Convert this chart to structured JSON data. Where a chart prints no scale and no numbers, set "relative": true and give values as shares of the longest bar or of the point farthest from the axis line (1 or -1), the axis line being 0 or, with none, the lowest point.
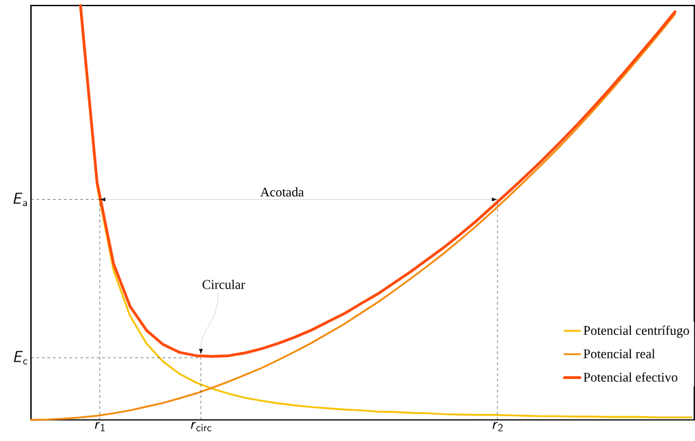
{
  "chart_data": {
    "type": "line",
    "relative": true,
    "legend": "bottom right",
    "categories": [
      null,
      null,
      null,
      null,
      null,
      null,
      null,
      null,
      null,
      null,
      null,
      null,
      null,
      null,
      null,
      null,
      null,
      null,
      null,
      null,
      null,
      null,
      null,
      null,
      null,
      null,
      null,
      null,
      null,
      null,
      null,
      null,
      null,
      null,
      null,
      null,
      null,
      null,
      null,
      null,
      null
    ],
    "series": [
      {
        "name": "Potencial centrífugo",
        "color": "#f7c100",
        "values": [
          null,
          null,
          null,
          0.99,
          0.564,
          0.361,
          0.251,
          0.184,
          0.141,
          0.111,
          0.09,
          0.075,
          0.063,
          0.053,
          0.046,
          0.04,
          0.035,
          0.031,
          0.028,
          0.025,
          0.023,
          0.02,
          0.019,
          0.017,
          0.016,
          0.014,
          0.013,
          0.012,
          0.012,
          0.011,
          0.01,
          0.009,
          0.009,
          0.008,
          0.008,
          0.007,
          0.007,
          0.007,
          0.006,
          0.006,
          0.006
        ]
      },
      {
        "name": "Potencial real",
        "color": "#f28a0c",
        "values": [
          0,
          0.001,
          0.003,
          0.006,
          0.01,
          0.016,
          0.023,
          0.032,
          0.041,
          0.052,
          0.064,
          0.078,
          0.093,
          0.109,
          0.126,
          0.145,
          0.165,
          0.186,
          0.209,
          0.232,
          0.258,
          0.284,
          0.312,
          0.341,
          0.371,
          0.402,
          0.435,
          0.469,
          0.505,
          0.542,
          0.58,
          0.619,
          0.659,
          0.701,
          0.744,
          0.789,
          0.835,
          0.882,
          0.93,
          0.979,
          null
        ]
      },
      {
        "name": "Potencial efectivo",
        "color": "#ff4a0a",
        "values": [
          null,
          null,
          null,
          1.0,
          0.574,
          0.377,
          0.274,
          0.216,
          0.182,
          0.163,
          0.155,
          0.153,
          0.155,
          0.162,
          0.172,
          0.185,
          0.2,
          0.217,
          0.237,
          0.257,
          0.281,
          0.304,
          0.331,
          0.358,
          0.387,
          0.416,
          0.448,
          0.481,
          0.517,
          0.553,
          0.59,
          0.628,
          0.668,
          0.709,
          0.752,
          0.796,
          0.842,
          0.889,
          0.936,
          0.985,
          null
        ]
      }
    ],
    "annotations": [
      "*E*$_{a}$",
      "Acotada",
      "Circular",
      "*E*$_{c}$",
      "*r*$_{1}$",
      "*r*$_{circ}$",
      "*r*$_{2}$"
    ]
  }
}
